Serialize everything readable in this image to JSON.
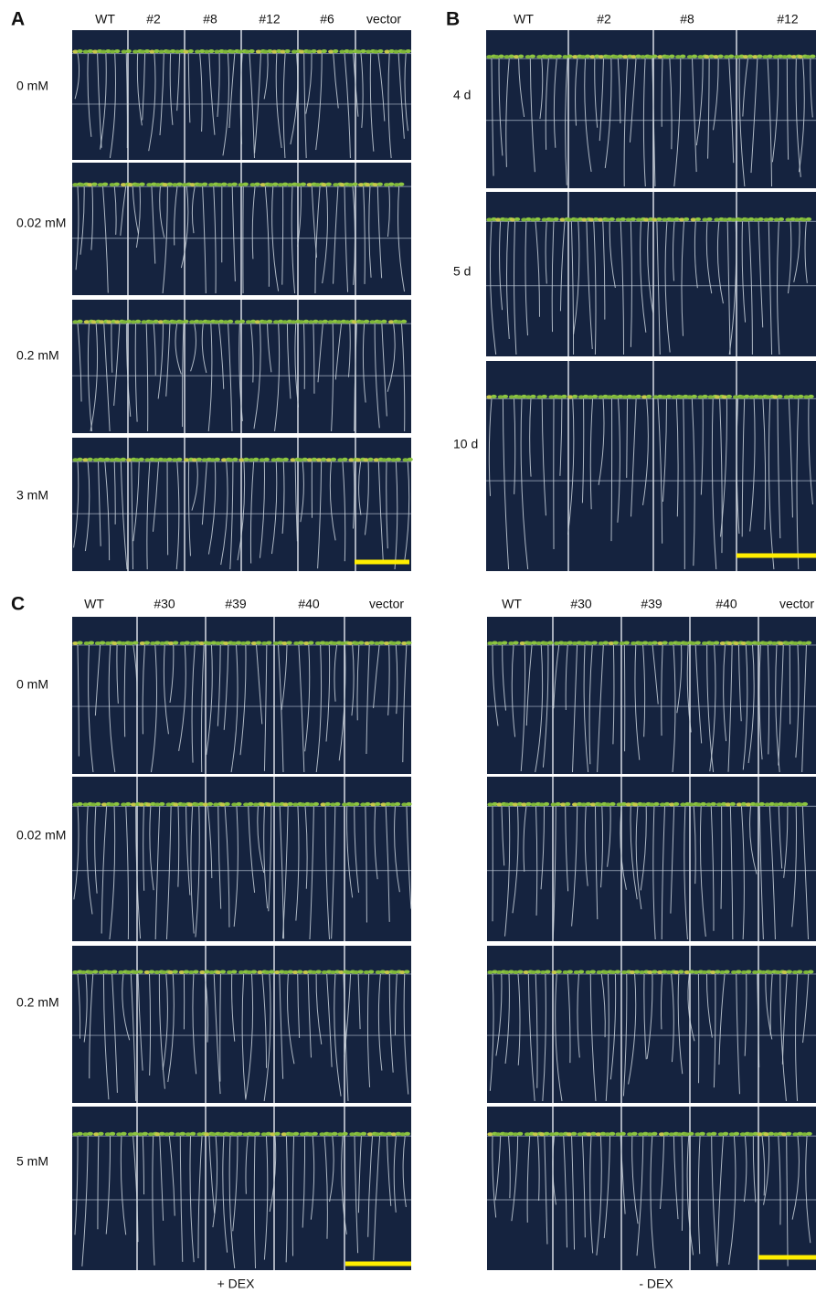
{
  "panels": [
    {
      "label": "A",
      "columns": [
        "WT",
        "#2",
        "#8",
        "#12",
        "#6",
        "vector"
      ],
      "rows": [
        "0 mM",
        "0.02 mM",
        "0.2 mM",
        "3 mM"
      ]
    },
    {
      "label": "B",
      "columns": [
        "WT",
        "#2",
        "#8",
        "#12"
      ],
      "rows": [
        "4 d",
        "5 d",
        "10 d"
      ]
    },
    {
      "label": "C",
      "subpanels": [
        {
          "columns": [
            "WT",
            "#30",
            "#39",
            "#40",
            "vector"
          ],
          "rows": [
            "0 mM",
            "0.02 mM",
            "0.2 mM",
            "5 mM"
          ],
          "caption": "+ DEX"
        },
        {
          "columns": [
            "WT",
            "#30",
            "#39",
            "#40",
            "vector"
          ],
          "caption": "- DEX"
        }
      ]
    }
  ]
}
